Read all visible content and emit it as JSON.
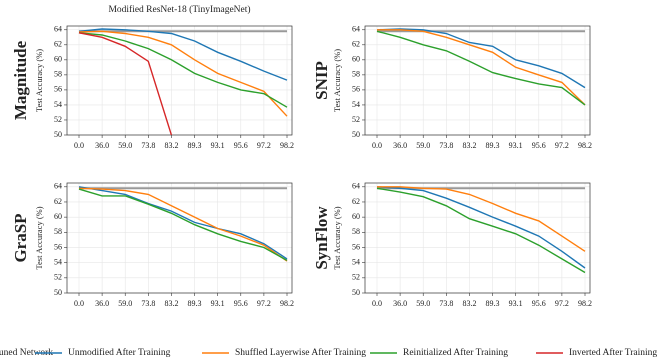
{
  "chart_data": [
    {
      "type": "line",
      "title": "Modified ResNet-18 (TinyImageNet)",
      "method": "Magnitude",
      "ylabel": "Test Accuracy (%)",
      "categories": [
        "0.0",
        "36.0",
        "59.0",
        "73.8",
        "83.2",
        "89.3",
        "93.1",
        "95.6",
        "97.2",
        "98.2"
      ],
      "ylim": [
        50,
        64.5
      ],
      "yticks": [
        50,
        52,
        54,
        56,
        58,
        60,
        62,
        64
      ],
      "grid": true,
      "series": [
        {
          "name": "Unpruned Network",
          "color": "#999999",
          "values": [
            63.8,
            63.8,
            63.8,
            63.8,
            63.8,
            63.8,
            63.8,
            63.8,
            63.8,
            63.8
          ]
        },
        {
          "name": "Unmodified After Training",
          "color": "#1f77b4",
          "values": [
            63.8,
            64.1,
            64.0,
            63.8,
            63.5,
            62.5,
            61.0,
            59.8,
            58.5,
            57.3
          ]
        },
        {
          "name": "Shuffled Layerwise After Training",
          "color": "#ff7f0e",
          "values": [
            63.7,
            63.8,
            63.5,
            63.0,
            62.0,
            60.0,
            58.2,
            57.0,
            55.8,
            52.5
          ]
        },
        {
          "name": "Reinitialized After Training",
          "color": "#2ca02c",
          "values": [
            63.6,
            63.3,
            62.5,
            61.5,
            60.0,
            58.2,
            57.0,
            56.0,
            55.5,
            53.7
          ]
        },
        {
          "name": "Inverted After Training",
          "color": "#d62728",
          "values": [
            63.6,
            63.0,
            61.8,
            59.8,
            50.0,
            null,
            null,
            null,
            null,
            null
          ]
        }
      ]
    },
    {
      "type": "line",
      "method": "SNIP",
      "ylabel": "Test Accuracy (%)",
      "categories": [
        "0.0",
        "36.0",
        "59.0",
        "73.8",
        "83.2",
        "89.3",
        "93.1",
        "95.6",
        "97.2",
        "98.2"
      ],
      "ylim": [
        50,
        64.5
      ],
      "yticks": [
        50,
        52,
        54,
        56,
        58,
        60,
        62,
        64
      ],
      "grid": true,
      "series": [
        {
          "name": "Unpruned Network",
          "color": "#999999",
          "values": [
            63.8,
            63.8,
            63.8,
            63.8,
            63.8,
            63.8,
            63.8,
            63.8,
            63.8,
            63.8
          ]
        },
        {
          "name": "Unmodified After Training",
          "color": "#1f77b4",
          "values": [
            64.0,
            64.1,
            64.0,
            63.5,
            62.3,
            61.8,
            60.0,
            59.2,
            58.2,
            56.3
          ]
        },
        {
          "name": "Shuffled Layerwise After Training",
          "color": "#ff7f0e",
          "values": [
            64.0,
            64.0,
            63.8,
            63.0,
            62.0,
            61.0,
            59.0,
            58.0,
            57.0,
            54.0
          ]
        },
        {
          "name": "Reinitialized After Training",
          "color": "#2ca02c",
          "values": [
            63.8,
            63.0,
            62.0,
            61.2,
            59.8,
            58.3,
            57.5,
            56.8,
            56.3,
            54.0
          ]
        }
      ]
    },
    {
      "type": "line",
      "method": "GraSP",
      "ylabel": "Test Accuracy (%)",
      "categories": [
        "0.0",
        "36.0",
        "59.0",
        "73.8",
        "83.2",
        "89.3",
        "93.1",
        "95.6",
        "97.2",
        "98.2"
      ],
      "ylim": [
        50,
        64.5
      ],
      "yticks": [
        50,
        52,
        54,
        56,
        58,
        60,
        62,
        64
      ],
      "grid": true,
      "series": [
        {
          "name": "Unpruned Network",
          "color": "#999999",
          "values": [
            63.8,
            63.8,
            63.8,
            63.8,
            63.8,
            63.8,
            63.8,
            63.8,
            63.8,
            63.8
          ]
        },
        {
          "name": "Unmodified After Training",
          "color": "#1f77b4",
          "values": [
            64.0,
            63.5,
            63.0,
            61.8,
            60.8,
            59.3,
            58.5,
            57.8,
            56.5,
            54.5
          ]
        },
        {
          "name": "Shuffled Layerwise After Training",
          "color": "#ff7f0e",
          "values": [
            63.8,
            63.7,
            63.5,
            63.0,
            61.5,
            60.0,
            58.5,
            57.5,
            56.3,
            54.2
          ]
        },
        {
          "name": "Reinitialized After Training",
          "color": "#2ca02c",
          "values": [
            63.7,
            62.8,
            62.8,
            61.7,
            60.5,
            59.0,
            57.8,
            56.8,
            56.0,
            54.3
          ]
        }
      ]
    },
    {
      "type": "line",
      "method": "SynFlow",
      "ylabel": "Test Accuracy (%)",
      "categories": [
        "0.0",
        "36.0",
        "59.0",
        "73.8",
        "83.2",
        "89.3",
        "93.1",
        "95.6",
        "97.2",
        "98.2"
      ],
      "ylim": [
        50,
        64.5
      ],
      "yticks": [
        50,
        52,
        54,
        56,
        58,
        60,
        62,
        64
      ],
      "grid": true,
      "series": [
        {
          "name": "Unpruned Network",
          "color": "#999999",
          "values": [
            63.8,
            63.8,
            63.8,
            63.8,
            63.8,
            63.8,
            63.8,
            63.8,
            63.8,
            63.8
          ]
        },
        {
          "name": "Unmodified After Training",
          "color": "#1f77b4",
          "values": [
            64.0,
            63.8,
            63.5,
            62.5,
            61.3,
            60.0,
            58.8,
            57.5,
            55.5,
            53.3
          ]
        },
        {
          "name": "Shuffled Layerwise After Training",
          "color": "#ff7f0e",
          "values": [
            64.0,
            64.0,
            63.8,
            63.7,
            63.0,
            61.8,
            60.5,
            59.5,
            57.5,
            55.5
          ]
        },
        {
          "name": "Reinitialized After Training",
          "color": "#2ca02c",
          "values": [
            63.8,
            63.3,
            62.7,
            61.5,
            59.8,
            58.8,
            57.8,
            56.3,
            54.5,
            52.7
          ]
        }
      ]
    }
  ]
}
